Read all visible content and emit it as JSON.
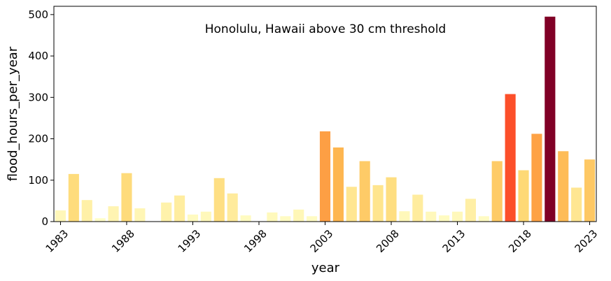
{
  "chart_data": {
    "type": "bar",
    "title": "Honolulu, Hawaii above 30 cm threshold",
    "xlabel": "year",
    "ylabel": "flood_hours_per_year",
    "ylim": [
      0,
      520
    ],
    "yticks": [
      0,
      100,
      200,
      300,
      400,
      500
    ],
    "xticks": [
      1983,
      1988,
      1993,
      1998,
      2003,
      2008,
      2013,
      2018,
      2023
    ],
    "grid": false,
    "colormap": "YlOrRd",
    "categories": [
      1983,
      1984,
      1985,
      1986,
      1987,
      1988,
      1989,
      1990,
      1991,
      1992,
      1993,
      1994,
      1995,
      1996,
      1997,
      1998,
      1999,
      2000,
      2001,
      2002,
      2003,
      2004,
      2005,
      2006,
      2007,
      2008,
      2009,
      2010,
      2011,
      2012,
      2013,
      2014,
      2015,
      2016,
      2017,
      2018,
      2019,
      2020,
      2021,
      2022,
      2023
    ],
    "values": [
      27,
      115,
      52,
      8,
      37,
      117,
      32,
      0,
      46,
      63,
      17,
      24,
      105,
      68,
      15,
      0,
      22,
      13,
      29,
      13,
      218,
      179,
      84,
      146,
      88,
      107,
      25,
      65,
      24,
      15,
      24,
      55,
      13,
      146,
      308,
      124,
      212,
      495,
      170,
      82,
      150
    ]
  }
}
